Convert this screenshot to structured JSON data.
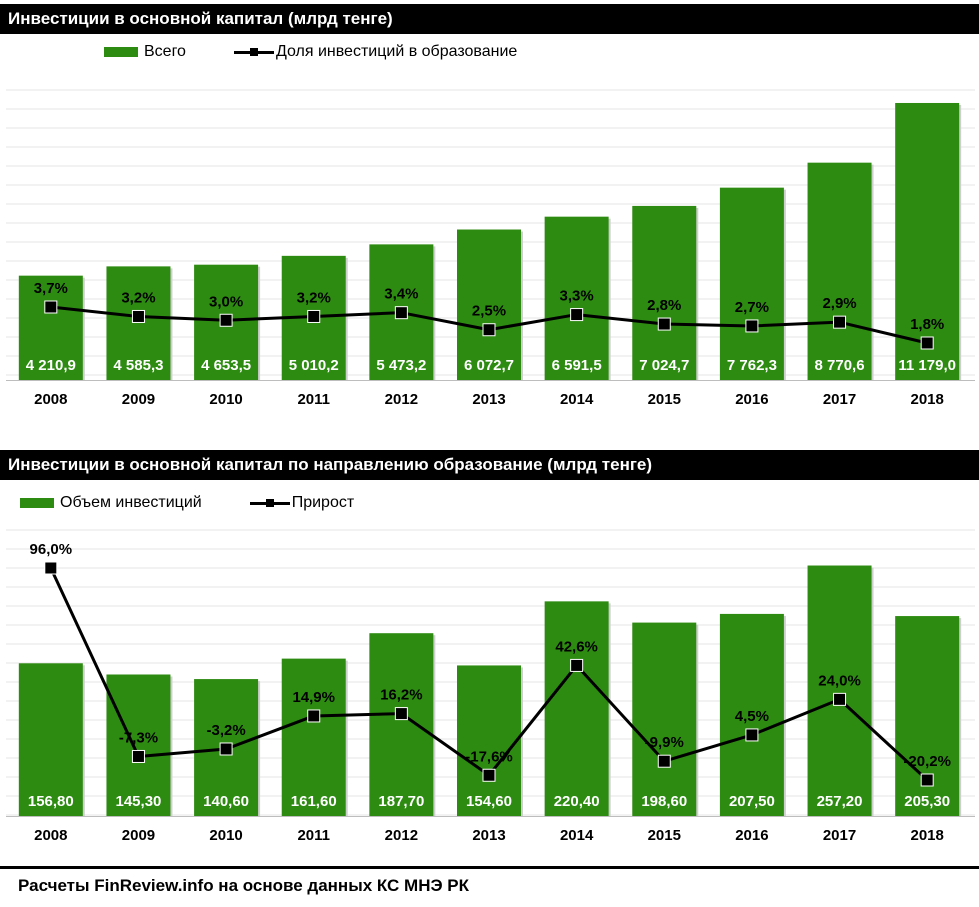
{
  "colors": {
    "bar": "#2e8b12",
    "line": "#000000",
    "header_bg": "#000000",
    "header_text": "#ffffff"
  },
  "chart_data": [
    {
      "type": "bar",
      "title": "Инвестиции в основной капитал (млрд тенге)",
      "categories": [
        "2008",
        "2009",
        "2010",
        "2011",
        "2012",
        "2013",
        "2014",
        "2015",
        "2016",
        "2017",
        "2018"
      ],
      "series": [
        {
          "name": "Всего",
          "type": "bar",
          "values": [
            4210.9,
            4585.3,
            4653.5,
            5010.2,
            5473.2,
            6072.7,
            6591.5,
            7024.7,
            7762.3,
            8770.6,
            11179.0
          ],
          "labels": [
            "4 210,9",
            "4 585,3",
            "4 653,5",
            "5 010,2",
            "5 473,2",
            "6 072,7",
            "6 591,5",
            "7 024,7",
            "7 762,3",
            "8 770,6",
            "11 179,0"
          ]
        },
        {
          "name": "Доля инвестиций в образование",
          "type": "line",
          "values": [
            3.7,
            3.2,
            3.0,
            3.2,
            3.4,
            2.5,
            3.3,
            2.8,
            2.7,
            2.9,
            1.8
          ],
          "labels": [
            "3,7%",
            "3,2%",
            "3,0%",
            "3,2%",
            "3,4%",
            "2,5%",
            "3,3%",
            "2,8%",
            "2,7%",
            "2,9%",
            "1,8%"
          ]
        }
      ],
      "grid": true,
      "legend": "top-left"
    },
    {
      "type": "bar",
      "title": "Инвестиции в основной капитал по направлению образование (млрд тенге)",
      "categories": [
        "2008",
        "2009",
        "2010",
        "2011",
        "2012",
        "2013",
        "2014",
        "2015",
        "2016",
        "2017",
        "2018"
      ],
      "series": [
        {
          "name": "Объем инвестиций",
          "type": "bar",
          "values": [
            156.8,
            145.3,
            140.6,
            161.6,
            187.7,
            154.6,
            220.4,
            198.6,
            207.5,
            257.2,
            205.3
          ],
          "labels": [
            "156,80",
            "145,30",
            "140,60",
            "161,60",
            "187,70",
            "154,60",
            "220,40",
            "198,60",
            "207,50",
            "257,20",
            "205,30"
          ]
        },
        {
          "name": "Прирост",
          "type": "line",
          "values": [
            96.0,
            -7.3,
            -3.2,
            14.9,
            16.2,
            -17.6,
            42.6,
            -9.9,
            4.5,
            24.0,
            -20.2
          ],
          "labels": [
            "96,0%",
            "-7,3%",
            "-3,2%",
            "14,9%",
            "16,2%",
            "-17,6%",
            "42,6%",
            "-9,9%",
            "4,5%",
            "24,0%",
            "-20,2%"
          ]
        }
      ],
      "grid": true,
      "legend": "top-left"
    }
  ],
  "source_note": "Расчеты FinReview.info на основе данных КС МНЭ РК"
}
